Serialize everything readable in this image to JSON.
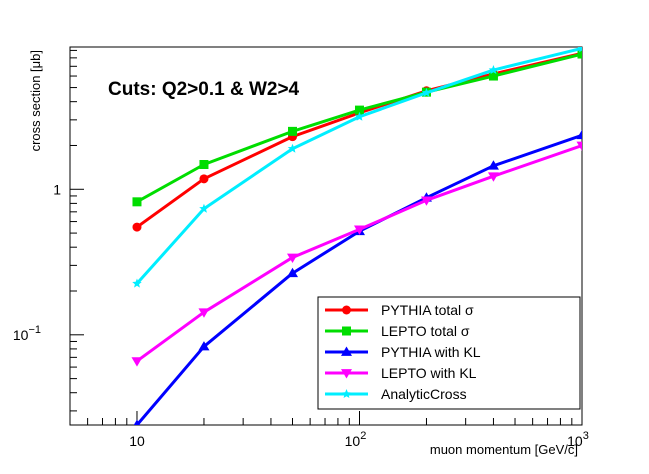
{
  "chart_data": {
    "type": "line",
    "title": "",
    "annotation": "Cuts: Q2>0.1 & W2>4",
    "xlabel": "muon momentum [GeV/c]",
    "ylabel": "cross section [μb]",
    "xscale": "log",
    "yscale": "log",
    "xlim": [
      5,
      1000
    ],
    "ylim": [
      0.024,
      9.5
    ],
    "x_ticks": [
      {
        "value": 10,
        "label": "10",
        "sup": ""
      },
      {
        "value": 100,
        "label": "10",
        "sup": "2"
      },
      {
        "value": 1000,
        "label": "10",
        "sup": "3"
      }
    ],
    "y_ticks": [
      {
        "value": 1,
        "label": "1",
        "sup": ""
      },
      {
        "value": 0.1,
        "label": "10",
        "sup": "−1"
      }
    ],
    "legend_position": "bottom-right",
    "series": [
      {
        "name": "PYTHIA total σ",
        "color": "#ff0000",
        "marker": "circle",
        "x": [
          10,
          20,
          50,
          100,
          200,
          400,
          1000
        ],
        "y": [
          0.55,
          1.18,
          2.3,
          3.35,
          4.75,
          6.2,
          8.6
        ]
      },
      {
        "name": "LEPTO total σ",
        "color": "#00dd00",
        "marker": "square",
        "x": [
          10,
          20,
          50,
          100,
          200,
          400,
          1000
        ],
        "y": [
          0.82,
          1.48,
          2.5,
          3.5,
          4.65,
          6.0,
          8.5
        ]
      },
      {
        "name": "PYTHIA with KL",
        "color": "#0000ff",
        "marker": "triangle-up",
        "x": [
          10,
          20,
          50,
          100,
          200,
          400,
          1000
        ],
        "y": [
          0.024,
          0.083,
          0.265,
          0.515,
          0.875,
          1.45,
          2.35
        ]
      },
      {
        "name": "LEPTO with KL",
        "color": "#ff00ff",
        "marker": "triangle-down",
        "x": [
          10,
          20,
          50,
          100,
          200,
          400,
          1000
        ],
        "y": [
          0.066,
          0.143,
          0.34,
          0.53,
          0.84,
          1.23,
          2.0
        ]
      },
      {
        "name": "AnalyticCross",
        "color": "#00eeff",
        "marker": "star",
        "x": [
          10,
          20,
          50,
          100,
          200,
          400,
          1000
        ],
        "y": [
          0.225,
          0.735,
          1.9,
          3.15,
          4.6,
          6.6,
          9.3
        ]
      }
    ]
  }
}
